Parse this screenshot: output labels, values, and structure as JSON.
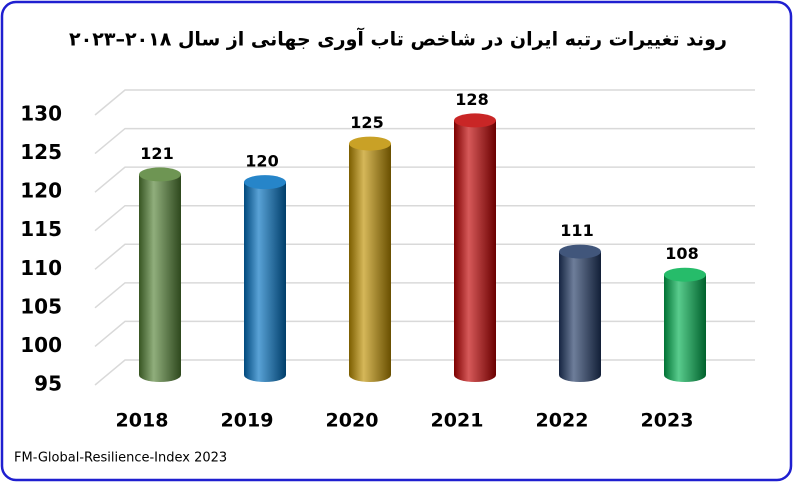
{
  "chart_data": {
    "type": "bar",
    "title": "روند تغییرات رتبه ایران در شاخص تاب آوری جهانی از سال ۲۰۱۸–۲۰۲۳",
    "source": "FM-Global-Resilience-Index 2023",
    "categories": [
      "2018",
      "2019",
      "2020",
      "2021",
      "2022",
      "2023"
    ],
    "values": [
      121,
      120,
      125,
      128,
      111,
      108
    ],
    "colors": [
      "#548235",
      "#0070c0",
      "#bf9000",
      "#c00000",
      "#203864",
      "#00b050"
    ],
    "ylim": [
      95,
      130
    ],
    "yticks": [
      95,
      100,
      105,
      110,
      115,
      120,
      125,
      130
    ],
    "grid": true
  }
}
